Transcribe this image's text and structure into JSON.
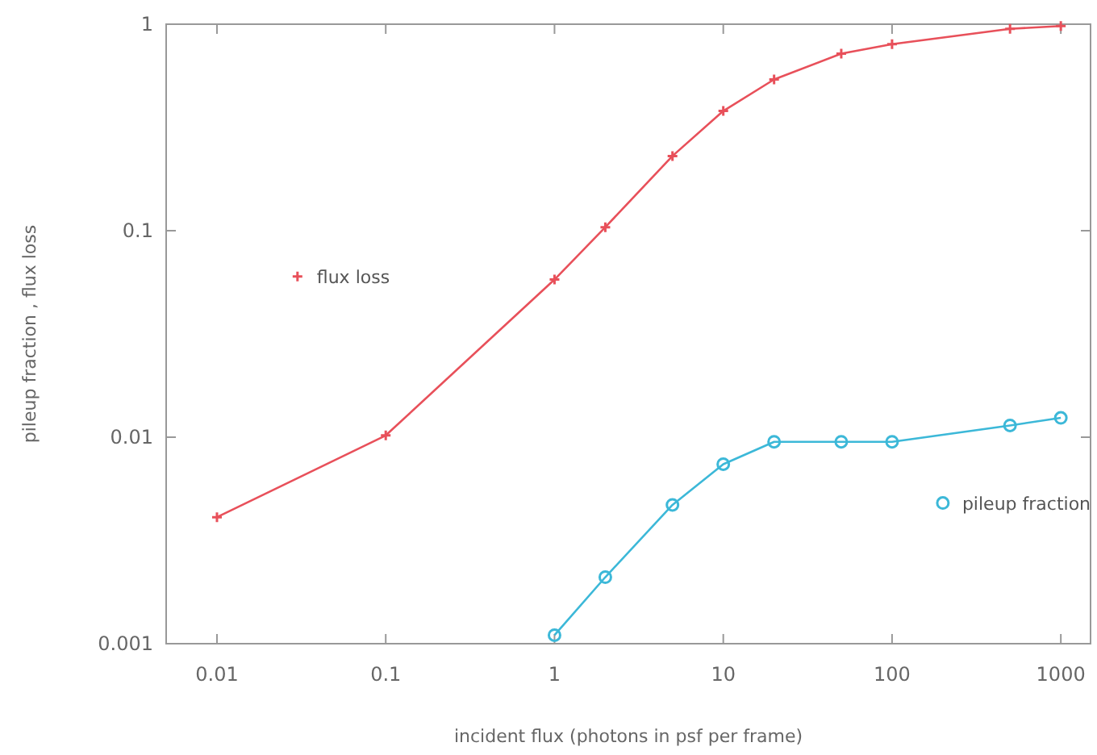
{
  "chart_data": {
    "type": "line",
    "xlabel": "incident flux (photons in psf per frame)",
    "ylabel": "pileup fraction , flux loss",
    "log": "xy",
    "legend": "bottom right",
    "xlim": [
      0.005,
      1500
    ],
    "ylim": [
      0.001,
      1
    ],
    "xticks": [
      0.01,
      0.1,
      1,
      10,
      100,
      1000
    ],
    "yticks": [
      0.001,
      0.01,
      0.1,
      1
    ],
    "series": [
      {
        "name": "flux loss",
        "color": "#e8505a",
        "marker": "cross",
        "x": [
          0.01,
          0.1,
          1,
          2,
          5,
          10,
          20,
          50,
          100,
          500,
          1000
        ],
        "values": [
          0.0041,
          0.0102,
          0.058,
          0.104,
          0.23,
          0.38,
          0.54,
          0.72,
          0.8,
          0.95,
          0.98
        ]
      },
      {
        "name": "pileup fraction",
        "color": "#3cb8d8",
        "marker": "circle",
        "x": [
          1,
          2,
          5,
          10,
          20,
          50,
          100,
          500,
          1000
        ],
        "values": [
          0.0011,
          0.0021,
          0.0047,
          0.0074,
          0.0095,
          0.0095,
          0.0095,
          0.0114,
          0.0124
        ]
      }
    ]
  }
}
